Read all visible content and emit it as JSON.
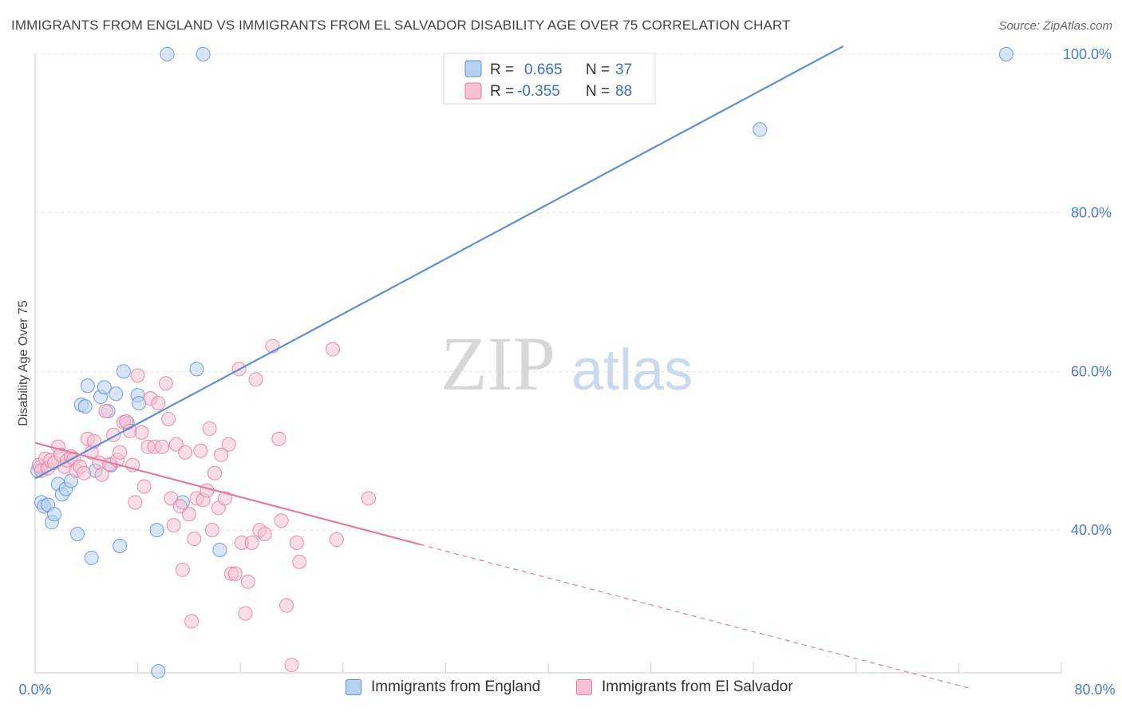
{
  "chart_data": {
    "type": "scatter",
    "title": "IMMIGRANTS FROM ENGLAND VS IMMIGRANTS FROM EL SALVADOR DISABILITY AGE OVER 75 CORRELATION CHART",
    "source": "Source: ZipAtlas.com",
    "ylabel": "Disability Age Over 75",
    "xlim": [
      0,
      80
    ],
    "ylim": [
      22,
      102
    ],
    "y_ticks": [
      {
        "value": 100,
        "label": "100.0%"
      },
      {
        "value": 80,
        "label": "80.0%"
      },
      {
        "value": 60,
        "label": "60.0%"
      },
      {
        "value": 40,
        "label": "40.0%"
      }
    ],
    "x_tick_values": [
      0,
      8,
      16,
      24,
      32,
      40,
      48,
      56,
      64,
      72,
      80
    ],
    "x_labels": {
      "min": "0.0%",
      "max": "80.0%"
    },
    "grid": true,
    "watermark": {
      "zip": "ZIP",
      "atlas": "atlas"
    },
    "legend": [
      {
        "r_label": "R =",
        "r_value": "0.665",
        "n_label": "N =",
        "n_value": "37"
      },
      {
        "r_label": "R =",
        "r_value": "-0.355",
        "n_label": "N =",
        "n_value": "88"
      }
    ],
    "series": [
      {
        "name": "Immigrants from England",
        "color": "#5b8fd6",
        "fill": "#b8d1f1",
        "trend": {
          "x": [
            0,
            63
          ],
          "y": [
            46.5,
            101
          ]
        },
        "points": [
          [
            0.2,
            47.5
          ],
          [
            0.4,
            48.0
          ],
          [
            0.5,
            43.5
          ],
          [
            0.7,
            43.0
          ],
          [
            1.0,
            43.2
          ],
          [
            1.3,
            41.0
          ],
          [
            1.5,
            42.0
          ],
          [
            1.8,
            45.8
          ],
          [
            2.1,
            44.5
          ],
          [
            2.4,
            45.2
          ],
          [
            2.8,
            46.2
          ],
          [
            3.3,
            39.5
          ],
          [
            3.6,
            55.8
          ],
          [
            3.9,
            55.6
          ],
          [
            4.1,
            58.2
          ],
          [
            4.4,
            36.5
          ],
          [
            4.7,
            47.5
          ],
          [
            5.1,
            56.8
          ],
          [
            5.4,
            58.0
          ],
          [
            5.7,
            55.0
          ],
          [
            5.9,
            48.2
          ],
          [
            6.3,
            57.2
          ],
          [
            6.6,
            38.0
          ],
          [
            6.9,
            60.0
          ],
          [
            7.2,
            53.5
          ],
          [
            8.0,
            57.0
          ],
          [
            8.1,
            56.0
          ],
          [
            9.5,
            40.0
          ],
          [
            9.6,
            22.2
          ],
          [
            10.3,
            100.0
          ],
          [
            11.5,
            43.5
          ],
          [
            12.6,
            60.3
          ],
          [
            13.1,
            100.0
          ],
          [
            14.4,
            37.5
          ],
          [
            56.5,
            90.5
          ],
          [
            75.7,
            100.0
          ]
        ]
      },
      {
        "name": "Immigrants from El Salvador",
        "color": "#e37aa0",
        "fill": "#f6c2d3",
        "trend": {
          "x": [
            0,
            30
          ],
          "y": [
            51.0,
            38.2
          ]
        },
        "trend_extension": {
          "x": [
            30,
            73
          ],
          "y": [
            38.2,
            20.0
          ]
        },
        "points": [
          [
            0.3,
            48.2
          ],
          [
            0.5,
            47.5
          ],
          [
            0.8,
            49.0
          ],
          [
            1.0,
            47.8
          ],
          [
            1.2,
            48.8
          ],
          [
            1.5,
            48.5
          ],
          [
            1.8,
            50.5
          ],
          [
            2.0,
            49.5
          ],
          [
            2.3,
            48.0
          ],
          [
            2.5,
            48.8
          ],
          [
            2.8,
            49.3
          ],
          [
            3.0,
            49.0
          ],
          [
            3.2,
            47.5
          ],
          [
            3.5,
            48.0
          ],
          [
            3.8,
            47.2
          ],
          [
            4.1,
            51.5
          ],
          [
            4.4,
            49.8
          ],
          [
            4.6,
            51.2
          ],
          [
            5.0,
            48.5
          ],
          [
            5.2,
            47.0
          ],
          [
            5.5,
            55.0
          ],
          [
            5.8,
            48.3
          ],
          [
            6.1,
            52.0
          ],
          [
            6.4,
            48.8
          ],
          [
            6.6,
            49.8
          ],
          [
            6.9,
            53.6
          ],
          [
            7.1,
            53.7
          ],
          [
            7.4,
            52.5
          ],
          [
            7.6,
            48.2
          ],
          [
            7.8,
            43.5
          ],
          [
            8.0,
            59.5
          ],
          [
            8.3,
            52.3
          ],
          [
            8.5,
            45.5
          ],
          [
            8.8,
            50.5
          ],
          [
            9.0,
            56.6
          ],
          [
            9.3,
            50.5
          ],
          [
            9.6,
            56.0
          ],
          [
            9.9,
            50.5
          ],
          [
            10.2,
            58.5
          ],
          [
            10.4,
            54.0
          ],
          [
            10.6,
            44.0
          ],
          [
            10.8,
            40.6
          ],
          [
            11.0,
            50.8
          ],
          [
            11.3,
            43.0
          ],
          [
            11.5,
            35.0
          ],
          [
            11.7,
            49.8
          ],
          [
            12.0,
            42.0
          ],
          [
            12.2,
            28.5
          ],
          [
            12.4,
            38.9
          ],
          [
            12.6,
            44.0
          ],
          [
            12.9,
            50.0
          ],
          [
            13.1,
            43.8
          ],
          [
            13.4,
            45.0
          ],
          [
            13.6,
            52.8
          ],
          [
            13.8,
            40.0
          ],
          [
            14.0,
            47.2
          ],
          [
            14.3,
            42.8
          ],
          [
            14.5,
            49.5
          ],
          [
            14.8,
            44.0
          ],
          [
            15.1,
            50.8
          ],
          [
            15.3,
            34.5
          ],
          [
            15.6,
            34.5
          ],
          [
            15.9,
            60.3
          ],
          [
            16.1,
            38.4
          ],
          [
            16.4,
            29.5
          ],
          [
            16.6,
            33.5
          ],
          [
            16.9,
            38.4
          ],
          [
            17.2,
            59.0
          ],
          [
            17.5,
            40.0
          ],
          [
            17.9,
            39.5
          ],
          [
            18.5,
            63.2
          ],
          [
            19.0,
            51.5
          ],
          [
            19.2,
            41.2
          ],
          [
            19.6,
            30.5
          ],
          [
            20.0,
            23.0
          ],
          [
            20.4,
            38.4
          ],
          [
            20.6,
            36.0
          ],
          [
            23.2,
            62.8
          ],
          [
            23.5,
            38.8
          ],
          [
            26.0,
            44.0
          ]
        ]
      }
    ],
    "bottom_legend": [
      "Immigrants from England",
      "Immigrants from El Salvador"
    ]
  }
}
